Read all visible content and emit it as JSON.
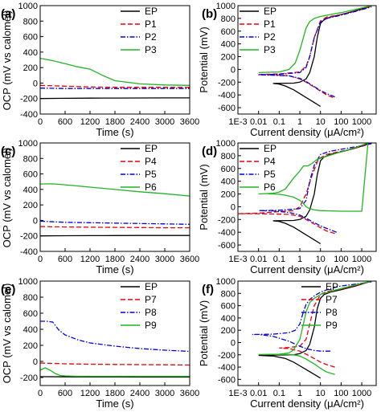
{
  "chart_data": [
    {
      "panel": "(a)",
      "type": "line",
      "xlabel": "Time (s)",
      "ylabel": "",
      "xlim": [
        0,
        3600
      ],
      "ylim": [
        -400,
        1000
      ],
      "xticks": [
        0,
        600,
        1200,
        1800,
        2400,
        3000,
        3600
      ],
      "yticks": [
        -400,
        -200,
        0,
        200,
        400,
        600,
        800,
        1000
      ],
      "legend": "top-right",
      "series": [
        {
          "name": "EP",
          "color": "#000000",
          "dash": "solid",
          "x": [
            0,
            600,
            1200,
            1800,
            2400,
            3000,
            3600
          ],
          "y": [
            -200,
            -197,
            -195,
            -194,
            -193,
            -192,
            -192
          ]
        },
        {
          "name": "P1",
          "color": "#e8000b",
          "dash": "dashed",
          "x": [
            0,
            600,
            1200,
            1800,
            2400,
            3000,
            3600
          ],
          "y": [
            -30,
            -40,
            -50,
            -55,
            -55,
            -55,
            -55
          ]
        },
        {
          "name": "P2",
          "color": "#0000e0",
          "dash": "dashdot",
          "x": [
            0,
            600,
            1200,
            1800,
            2400,
            3000,
            3600
          ],
          "y": [
            -65,
            -70,
            -70,
            -70,
            -70,
            -70,
            -70
          ]
        },
        {
          "name": "P3",
          "color": "#22b422",
          "dash": "solid",
          "x": [
            0,
            300,
            600,
            900,
            1200,
            1500,
            1800,
            2400,
            3000,
            3600
          ],
          "y": [
            320,
            290,
            250,
            210,
            180,
            100,
            30,
            -10,
            -25,
            -30
          ]
        }
      ]
    },
    {
      "panel": "(b)",
      "type": "line",
      "xlabel": "Current density (μA/cm²)",
      "ylabel": "Potential (mV)",
      "xscale": "log",
      "xlim": [
        0.001,
        5000
      ],
      "ylim": [
        -700,
        1000
      ],
      "xtick_labels": [
        "1E-3",
        "0.01",
        "0.1",
        "1",
        "10",
        "100",
        "1000"
      ],
      "yticks": [
        -600,
        -400,
        -200,
        0,
        200,
        400,
        600,
        800,
        1000
      ],
      "legend": "top-left",
      "series": [
        {
          "name": "EP",
          "color": "#000000",
          "dash": "solid",
          "x": [
            10,
            5,
            2,
            1,
            0.5,
            0.2,
            0.1,
            0.05,
            0.5,
            1,
            2,
            3,
            5,
            7,
            10,
            15,
            30,
            100,
            500,
            3000
          ],
          "y": [
            -580,
            -520,
            -440,
            -380,
            -320,
            -260,
            -230,
            -220,
            -215,
            -200,
            -150,
            -50,
            200,
            500,
            720,
            780,
            820,
            860,
            920,
            1000
          ]
        },
        {
          "name": "P1",
          "color": "#e8000b",
          "dash": "dashed",
          "x": [
            40,
            20,
            10,
            5,
            2,
            1,
            0.3,
            0.1,
            0.01,
            0.1,
            1,
            2,
            3,
            5,
            10,
            20,
            100,
            500,
            3000
          ],
          "y": [
            -440,
            -400,
            -340,
            -280,
            -200,
            -150,
            -100,
            -90,
            -80,
            -70,
            -40,
            50,
            200,
            500,
            760,
            820,
            860,
            910,
            990
          ]
        },
        {
          "name": "P2",
          "color": "#0000e0",
          "dash": "dashdot",
          "x": [
            50,
            20,
            10,
            5,
            2,
            1,
            0.3,
            0.05,
            0.01,
            0.1,
            1,
            2,
            3,
            5,
            10,
            20,
            100,
            500,
            3000
          ],
          "y": [
            -430,
            -380,
            -330,
            -270,
            -190,
            -140,
            -100,
            -90,
            -85,
            -75,
            -50,
            30,
            200,
            500,
            740,
            800,
            850,
            910,
            980
          ]
        },
        {
          "name": "P3",
          "color": "#22b422",
          "dash": "solid",
          "x": [
            0.01,
            0.1,
            0.3,
            0.6,
            1,
            1.5,
            2,
            3,
            5,
            10,
            30,
            100,
            500,
            3000
          ],
          "y": [
            -50,
            -40,
            0,
            100,
            300,
            500,
            650,
            750,
            800,
            830,
            860,
            890,
            940,
            1000
          ]
        }
      ]
    },
    {
      "panel": "(c)",
      "type": "line",
      "xlabel": "Time (s)",
      "ylabel": "",
      "xlim": [
        0,
        3600
      ],
      "ylim": [
        -400,
        1000
      ],
      "xticks": [
        0,
        600,
        1200,
        1800,
        2400,
        3000,
        3600
      ],
      "yticks": [
        -400,
        -200,
        0,
        200,
        400,
        600,
        800,
        1000
      ],
      "legend": "top-right",
      "series": [
        {
          "name": "EP",
          "color": "#000000",
          "dash": "solid",
          "x": [
            0,
            600,
            1200,
            1800,
            2400,
            3000,
            3600
          ],
          "y": [
            -200,
            -198,
            -197,
            -196,
            -195,
            -195,
            -195
          ]
        },
        {
          "name": "P4",
          "color": "#e8000b",
          "dash": "dashed",
          "x": [
            0,
            600,
            1200,
            1800,
            2400,
            3000,
            3600
          ],
          "y": [
            -80,
            -85,
            -88,
            -90,
            -92,
            -95,
            -95
          ]
        },
        {
          "name": "P5",
          "color": "#0000e0",
          "dash": "dashdot",
          "x": [
            0,
            600,
            1200,
            1800,
            2400,
            3000,
            3600
          ],
          "y": [
            -10,
            -25,
            -30,
            -35,
            -40,
            -45,
            -50
          ]
        },
        {
          "name": "P6",
          "color": "#22b422",
          "dash": "solid",
          "x": [
            0,
            300,
            600,
            1200,
            1800,
            2400,
            3000,
            3600
          ],
          "y": [
            470,
            472,
            460,
            430,
            400,
            370,
            345,
            315
          ]
        }
      ]
    },
    {
      "panel": "(d)",
      "type": "line",
      "xlabel": "Current density (μA/cm²)",
      "ylabel": "Potential (mV)",
      "xscale": "log",
      "xlim": [
        0.001,
        5000
      ],
      "ylim": [
        -700,
        1000
      ],
      "xtick_labels": [
        "1E-3",
        "0.01",
        "0.1",
        "1",
        "10",
        "100",
        "1000"
      ],
      "yticks": [
        -600,
        -400,
        -200,
        0,
        200,
        400,
        600,
        800,
        1000
      ],
      "legend": "top-left",
      "series": [
        {
          "name": "EP",
          "color": "#000000",
          "dash": "solid",
          "x": [
            10,
            5,
            2,
            1,
            0.5,
            0.2,
            0.1,
            0.05,
            0.5,
            1,
            2,
            3,
            5,
            7,
            10,
            15,
            30,
            100,
            500,
            3000
          ],
          "y": [
            -580,
            -520,
            -440,
            -380,
            -320,
            -260,
            -230,
            -220,
            -215,
            -200,
            -150,
            -50,
            200,
            500,
            720,
            780,
            820,
            860,
            920,
            1000
          ]
        },
        {
          "name": "P4",
          "color": "#e8000b",
          "dash": "dashed",
          "x": [
            50,
            20,
            10,
            5,
            2,
            1,
            0.3,
            0.01,
            0.001,
            0.01,
            0.5,
            1,
            2,
            4,
            8,
            20,
            100,
            500,
            3000
          ],
          "y": [
            -420,
            -380,
            -330,
            -270,
            -200,
            -150,
            -120,
            -110,
            -110,
            -100,
            -60,
            0,
            200,
            500,
            750,
            820,
            870,
            920,
            990
          ]
        },
        {
          "name": "P5",
          "color": "#0000e0",
          "dash": "dashdot",
          "x": [
            60,
            20,
            10,
            5,
            2,
            1,
            0.3,
            0.05,
            0.01,
            0.1,
            1,
            2,
            3,
            5,
            10,
            30,
            100,
            500,
            3000
          ],
          "y": [
            -400,
            -340,
            -300,
            -250,
            -180,
            -130,
            -90,
            -65,
            -60,
            -55,
            -30,
            100,
            400,
            650,
            820,
            870,
            900,
            940,
            990
          ]
        },
        {
          "name": "P6",
          "color": "#22b422",
          "dash": "solid",
          "x": [
            0.01,
            0.05,
            0.1,
            0.2,
            0.5,
            1,
            1.5,
            2.5,
            4,
            6,
            10,
            30,
            100,
            500,
            2000,
            1000,
            300,
            100,
            30,
            10,
            5,
            3,
            2,
            1.5,
            1,
            0.5,
            0.2,
            0.1,
            0.05,
            0.03
          ],
          "y": [
            200,
            210,
            230,
            280,
            450,
            560,
            640,
            640,
            680,
            730,
            760,
            810,
            860,
            930,
            1000,
            -70,
            -70,
            -70,
            -65,
            -60,
            -50,
            -30,
            0,
            50,
            100,
            150,
            180,
            195,
            200,
            200
          ]
        }
      ]
    },
    {
      "panel": "(e)",
      "type": "line",
      "xlabel": "Time (s)",
      "ylabel": "",
      "xlim": [
        0,
        3600
      ],
      "ylim": [
        -300,
        1000
      ],
      "xticks": [
        0,
        600,
        1200,
        1800,
        2400,
        3000,
        3600
      ],
      "yticks": [
        -200,
        0,
        200,
        400,
        600,
        800,
        1000
      ],
      "legend": "top-right",
      "series": [
        {
          "name": "EP",
          "color": "#000000",
          "dash": "solid",
          "x": [
            0,
            600,
            1200,
            1800,
            2400,
            3000,
            3600
          ],
          "y": [
            -190,
            -192,
            -193,
            -194,
            -195,
            -195,
            -195
          ]
        },
        {
          "name": "P7",
          "color": "#e8000b",
          "dash": "dashed",
          "x": [
            0,
            600,
            1200,
            1800,
            2400,
            3000,
            3600
          ],
          "y": [
            -20,
            -30,
            -35,
            -38,
            -40,
            -42,
            -45
          ]
        },
        {
          "name": "P8",
          "color": "#0000e0",
          "dash": "dashdot",
          "x": [
            0,
            150,
            300,
            450,
            600,
            900,
            1200,
            1800,
            2400,
            3000,
            3600
          ],
          "y": [
            500,
            500,
            490,
            390,
            330,
            270,
            230,
            190,
            160,
            140,
            125
          ]
        },
        {
          "name": "P9",
          "color": "#22b422",
          "dash": "solid",
          "x": [
            0,
            120,
            240,
            360,
            480,
            600,
            900,
            1200,
            1800,
            2400,
            3000,
            3600
          ],
          "y": [
            -110,
            -80,
            -110,
            -150,
            -175,
            -180,
            -185,
            -185,
            -185,
            -185,
            -185,
            -185
          ]
        }
      ]
    },
    {
      "panel": "(f)",
      "type": "line",
      "xlabel": "Current density (μA/cm²)",
      "ylabel": "Potential (mV)",
      "xscale": "log",
      "xlim": [
        0.001,
        5000
      ],
      "ylim": [
        -700,
        1000
      ],
      "xtick_labels": [
        "1E-3",
        "0.01",
        "0.1",
        "1",
        "10",
        "100",
        "1000"
      ],
      "yticks": [
        -600,
        -400,
        -200,
        0,
        200,
        400,
        600,
        800,
        1000
      ],
      "legend": "top-right",
      "series": [
        {
          "name": "EP",
          "color": "#000000",
          "dash": "solid",
          "x": [
            10,
            5,
            2,
            1,
            0.5,
            0.2,
            0.05,
            0.01,
            0.05,
            0.5,
            1,
            2,
            3,
            5,
            7,
            10,
            15,
            30,
            100,
            500,
            3000
          ],
          "y": [
            -580,
            -520,
            -440,
            -380,
            -320,
            -260,
            -220,
            -210,
            -205,
            -200,
            -180,
            -130,
            -30,
            250,
            550,
            720,
            780,
            820,
            860,
            920,
            1000
          ]
        },
        {
          "name": "P7",
          "color": "#e8000b",
          "dash": "dashed",
          "x": [
            50,
            20,
            10,
            5,
            2,
            1,
            0.3,
            0.1,
            0.3,
            1,
            2,
            3,
            5,
            10,
            20,
            100,
            500,
            3000
          ],
          "y": [
            -400,
            -360,
            -320,
            -260,
            -190,
            -140,
            -100,
            -90,
            -80,
            -60,
            50,
            300,
            600,
            780,
            830,
            870,
            930,
            1000
          ]
        },
        {
          "name": "P8",
          "color": "#0000e0",
          "dash": "dashdot",
          "x": [
            30,
            10,
            5,
            2,
            1,
            0.3,
            0.05,
            0.01,
            0.005,
            0.05,
            0.3,
            0.6,
            1,
            1.5,
            2,
            3,
            5,
            10,
            30,
            100,
            500,
            3000
          ],
          "y": [
            -140,
            -140,
            -130,
            -100,
            -60,
            20,
            100,
            130,
            130,
            135,
            160,
            200,
            300,
            500,
            620,
            700,
            760,
            820,
            880,
            920,
            950,
            990
          ]
        },
        {
          "name": "P9",
          "color": "#22b422",
          "dash": "solid",
          "x": [
            50,
            20,
            10,
            5,
            2,
            1,
            0.5,
            0.2,
            0.05,
            0.01,
            0.1,
            0.3,
            0.5,
            1,
            1.5,
            2,
            3,
            5,
            10,
            30,
            100,
            500,
            3000
          ],
          "y": [
            -520,
            -480,
            -420,
            -350,
            -270,
            -220,
            -200,
            -195,
            -195,
            -195,
            -190,
            -170,
            -120,
            50,
            300,
            500,
            650,
            720,
            780,
            830,
            880,
            940,
            1000
          ]
        }
      ]
    }
  ],
  "figure": {
    "shared_ylabel": "OCP (mV vs calomel)"
  }
}
